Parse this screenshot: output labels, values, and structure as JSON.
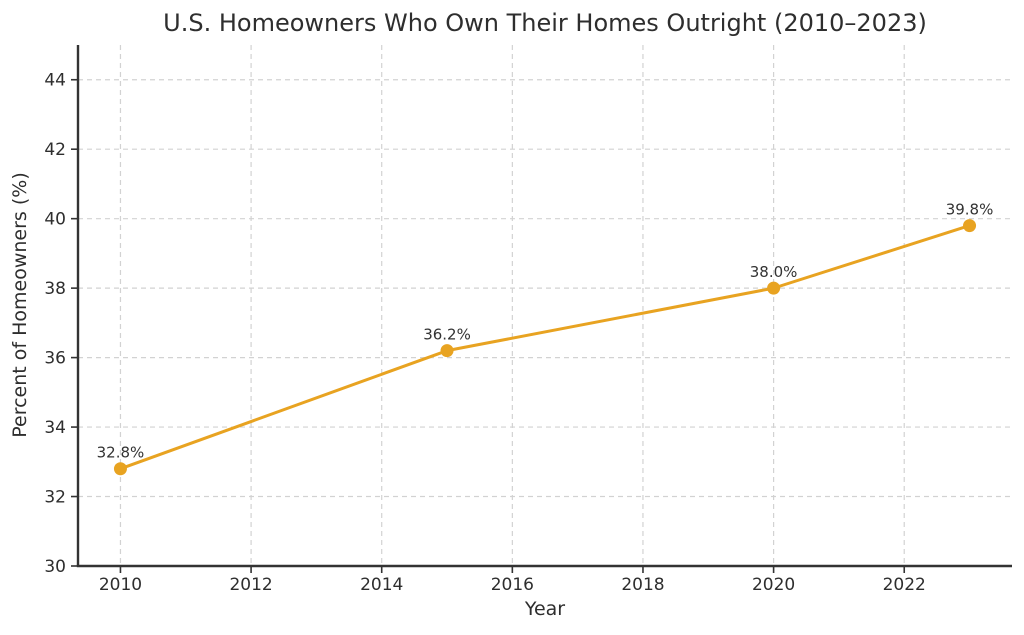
{
  "chart_data": {
    "type": "line",
    "title": "U.S. Homeowners Who Own Their Homes Outright (2010–2023)",
    "xlabel": "Year",
    "ylabel": "Percent of Homeowners (%)",
    "x": [
      2010,
      2015,
      2020,
      2023
    ],
    "values": [
      32.8,
      36.2,
      38.0,
      39.8
    ],
    "point_labels": [
      "32.8%",
      "36.2%",
      "38.0%",
      "39.8%"
    ],
    "xlim": [
      2009.35,
      2023.65
    ],
    "ylim": [
      30,
      45
    ],
    "xticks": [
      2010,
      2012,
      2014,
      2016,
      2018,
      2020,
      2022
    ],
    "xtick_labels": [
      "2010",
      "2012",
      "2014",
      "2016",
      "2018",
      "2020",
      "2022"
    ],
    "yticks": [
      30,
      32,
      34,
      36,
      38,
      40,
      42,
      44
    ],
    "ytick_labels": [
      "30",
      "32",
      "34",
      "36",
      "38",
      "40",
      "42",
      "44"
    ],
    "grid": true,
    "grid_style": "dashed",
    "legend": false,
    "colors": {
      "line": "#E8A321",
      "marker": "#E8A321",
      "grid": "#d2d2d2",
      "spine": "#333333",
      "tick_text": "#2e2e2e",
      "annotation": "#333333"
    }
  }
}
